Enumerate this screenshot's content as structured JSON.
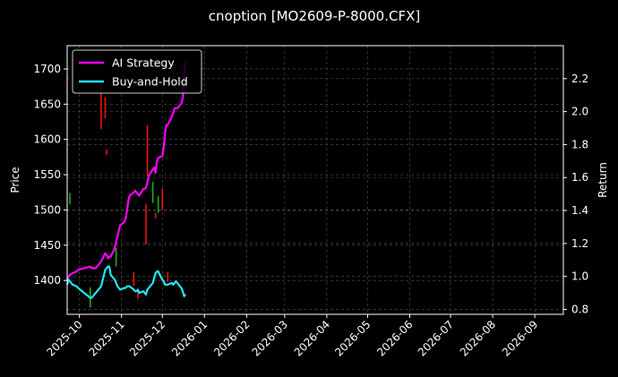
{
  "chart_data": {
    "type": "line",
    "title": "cnoption [MO2609-P-8000.CFX]",
    "ylabel_left": "Price",
    "ylabel_right": "Return",
    "xlim": [
      "2025-09-22",
      "2026-09-22"
    ],
    "ylim_left": [
      1352,
      1733
    ],
    "ylim_right": [
      0.77,
      2.4
    ],
    "grid": true,
    "legend_position": "top-left",
    "x_ticks": [
      "2025-10",
      "2025-11",
      "2025-12",
      "2026-01",
      "2026-02",
      "2026-03",
      "2026-04",
      "2026-05",
      "2026-06",
      "2026-07",
      "2026-08",
      "2026-09"
    ],
    "y_ticks_left": [
      1400,
      1450,
      1500,
      1550,
      1600,
      1650,
      1700
    ],
    "y_ticks_right": [
      0.8,
      1.0,
      1.2,
      1.4,
      1.6,
      1.8,
      2.0,
      2.2
    ],
    "colors": {
      "background": "#000000",
      "grid": "#555555",
      "ai_strategy": "#ff00ff",
      "buy_and_hold": "#22e6ff",
      "candle_up": "#22aa22",
      "candle_down": "#ee1111"
    },
    "series": [
      {
        "name": "AI Strategy",
        "axis": "right",
        "points": [
          [
            "2025-09-22",
            0.98
          ],
          [
            "2025-09-23",
            1.0
          ],
          [
            "2025-09-24",
            1.01
          ],
          [
            "2025-09-25",
            1.015
          ],
          [
            "2025-09-26",
            1.02
          ],
          [
            "2025-09-29",
            1.03
          ],
          [
            "2025-09-30",
            1.04
          ],
          [
            "2025-10-09",
            1.06
          ],
          [
            "2025-10-10",
            1.05
          ],
          [
            "2025-10-13",
            1.05
          ],
          [
            "2025-10-14",
            1.06
          ],
          [
            "2025-10-15",
            1.07
          ],
          [
            "2025-10-16",
            1.08
          ],
          [
            "2025-10-17",
            1.09
          ],
          [
            "2025-10-20",
            1.14
          ],
          [
            "2025-10-21",
            1.13
          ],
          [
            "2025-10-22",
            1.11
          ],
          [
            "2025-10-23",
            1.12
          ],
          [
            "2025-10-24",
            1.12
          ],
          [
            "2025-10-27",
            1.17
          ],
          [
            "2025-10-28",
            1.21
          ],
          [
            "2025-10-29",
            1.24
          ],
          [
            "2025-10-30",
            1.28
          ],
          [
            "2025-10-31",
            1.31
          ],
          [
            "2025-11-03",
            1.33
          ],
          [
            "2025-11-04",
            1.35
          ],
          [
            "2025-11-05",
            1.4
          ],
          [
            "2025-11-06",
            1.46
          ],
          [
            "2025-11-07",
            1.49
          ],
          [
            "2025-11-10",
            1.51
          ],
          [
            "2025-11-11",
            1.52
          ],
          [
            "2025-11-12",
            1.51
          ],
          [
            "2025-11-13",
            1.5
          ],
          [
            "2025-11-14",
            1.49
          ],
          [
            "2025-11-17",
            1.53
          ],
          [
            "2025-11-18",
            1.53
          ],
          [
            "2025-11-19",
            1.54
          ],
          [
            "2025-11-20",
            1.57
          ],
          [
            "2025-11-21",
            1.61
          ],
          [
            "2025-11-24",
            1.65
          ],
          [
            "2025-11-25",
            1.66
          ],
          [
            "2025-11-26",
            1.63
          ],
          [
            "2025-11-27",
            1.7
          ],
          [
            "2025-11-28",
            1.72
          ],
          [
            "2025-12-01",
            1.73
          ],
          [
            "2025-12-02",
            1.78
          ],
          [
            "2025-12-03",
            1.87
          ],
          [
            "2025-12-04",
            1.92
          ],
          [
            "2025-12-05",
            1.92
          ],
          [
            "2025-12-08",
            1.97
          ],
          [
            "2025-12-09",
            1.99
          ],
          [
            "2025-12-10",
            2.02
          ],
          [
            "2025-12-11",
            2.02
          ],
          [
            "2025-12-12",
            2.02
          ],
          [
            "2025-12-15",
            2.05
          ],
          [
            "2025-12-16",
            2.08
          ],
          [
            "2025-12-17",
            2.22
          ],
          [
            "2025-12-18",
            2.3
          ]
        ]
      },
      {
        "name": "Buy-and-Hold",
        "axis": "right",
        "points": [
          [
            "2025-09-22",
            0.95
          ],
          [
            "2025-09-23",
            0.98
          ],
          [
            "2025-09-24",
            0.97
          ],
          [
            "2025-09-25",
            0.96
          ],
          [
            "2025-09-26",
            0.95
          ],
          [
            "2025-09-29",
            0.94
          ],
          [
            "2025-09-30",
            0.93
          ],
          [
            "2025-10-09",
            0.87
          ],
          [
            "2025-10-10",
            0.87
          ],
          [
            "2025-10-13",
            0.9
          ],
          [
            "2025-10-14",
            0.91
          ],
          [
            "2025-10-15",
            0.92
          ],
          [
            "2025-10-16",
            0.93
          ],
          [
            "2025-10-17",
            0.94
          ],
          [
            "2025-10-20",
            1.04
          ],
          [
            "2025-10-21",
            1.05
          ],
          [
            "2025-10-22",
            1.06
          ],
          [
            "2025-10-23",
            1.06
          ],
          [
            "2025-10-24",
            1.01
          ],
          [
            "2025-10-27",
            0.98
          ],
          [
            "2025-10-28",
            0.96
          ],
          [
            "2025-10-29",
            0.94
          ],
          [
            "2025-10-30",
            0.93
          ],
          [
            "2025-10-31",
            0.92
          ],
          [
            "2025-11-03",
            0.93
          ],
          [
            "2025-11-04",
            0.93
          ],
          [
            "2025-11-05",
            0.94
          ],
          [
            "2025-11-06",
            0.94
          ],
          [
            "2025-11-07",
            0.94
          ],
          [
            "2025-11-10",
            0.92
          ],
          [
            "2025-11-11",
            0.91
          ],
          [
            "2025-11-12",
            0.91
          ],
          [
            "2025-11-13",
            0.92
          ],
          [
            "2025-11-14",
            0.9
          ],
          [
            "2025-11-17",
            0.91
          ],
          [
            "2025-11-18",
            0.9
          ],
          [
            "2025-11-19",
            0.89
          ],
          [
            "2025-11-20",
            0.92
          ],
          [
            "2025-11-21",
            0.93
          ],
          [
            "2025-11-24",
            0.96
          ],
          [
            "2025-11-25",
            0.99
          ],
          [
            "2025-11-26",
            1.02
          ],
          [
            "2025-11-27",
            1.03
          ],
          [
            "2025-11-28",
            1.03
          ],
          [
            "2025-12-01",
            0.98
          ],
          [
            "2025-12-02",
            0.97
          ],
          [
            "2025-12-03",
            0.95
          ],
          [
            "2025-12-04",
            0.95
          ],
          [
            "2025-12-05",
            0.95
          ],
          [
            "2025-12-08",
            0.96
          ],
          [
            "2025-12-09",
            0.95
          ],
          [
            "2025-12-10",
            0.96
          ],
          [
            "2025-12-11",
            0.97
          ],
          [
            "2025-12-12",
            0.96
          ],
          [
            "2025-12-15",
            0.93
          ],
          [
            "2025-12-16",
            0.91
          ],
          [
            "2025-12-17",
            0.88
          ],
          [
            "2025-12-18",
            0.89
          ]
        ]
      }
    ],
    "candles": [
      {
        "date": "2025-09-24",
        "low": 1508,
        "high": 1524,
        "dir": "up"
      },
      {
        "date": "2025-10-09",
        "low": 1362,
        "high": 1390,
        "dir": "up"
      },
      {
        "date": "2025-10-17",
        "low": 1615,
        "high": 1680,
        "dir": "down"
      },
      {
        "date": "2025-10-20",
        "low": 1630,
        "high": 1660,
        "dir": "down"
      },
      {
        "date": "2025-10-21",
        "low": 1578,
        "high": 1586,
        "dir": "down"
      },
      {
        "date": "2025-10-28",
        "low": 1420,
        "high": 1446,
        "dir": "up"
      },
      {
        "date": "2025-11-10",
        "low": 1392,
        "high": 1412,
        "dir": "down"
      },
      {
        "date": "2025-11-13",
        "low": 1374,
        "high": 1386,
        "dir": "down"
      },
      {
        "date": "2025-11-19",
        "low": 1451,
        "high": 1508,
        "dir": "down"
      },
      {
        "date": "2025-11-20",
        "low": 1548,
        "high": 1620,
        "dir": "down"
      },
      {
        "date": "2025-11-24",
        "low": 1510,
        "high": 1540,
        "dir": "up"
      },
      {
        "date": "2025-11-26",
        "low": 1488,
        "high": 1496,
        "dir": "down"
      },
      {
        "date": "2025-11-28",
        "low": 1496,
        "high": 1520,
        "dir": "up"
      },
      {
        "date": "2025-12-01",
        "low": 1500,
        "high": 1530,
        "dir": "down"
      },
      {
        "date": "2025-12-05",
        "low": 1398,
        "high": 1412,
        "dir": "down"
      },
      {
        "date": "2025-12-09",
        "low": 1688,
        "high": 1712,
        "dir": "down"
      }
    ]
  }
}
